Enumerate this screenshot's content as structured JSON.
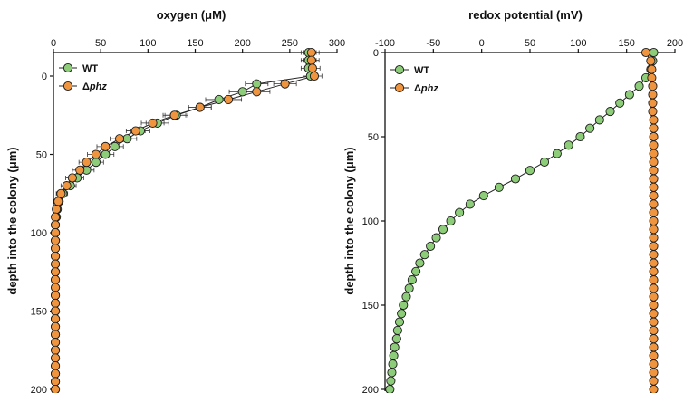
{
  "chart_data": [
    {
      "type": "scatter",
      "title": "oxygen (μM)",
      "xlabel": "",
      "ylabel": "depth into the colony (μm)",
      "xlim": [
        0,
        300
      ],
      "ylim": [
        -15,
        200
      ],
      "x_axis_position": "top",
      "y_inverted": true,
      "xticks": [
        0,
        50,
        100,
        150,
        200,
        250,
        300
      ],
      "yticks": [
        0,
        50,
        100,
        150,
        200
      ],
      "legend": {
        "position": "top-left",
        "entries": [
          {
            "label": "WT",
            "italic": false,
            "prefix": ""
          },
          {
            "label": "phz",
            "italic": true,
            "prefix": "Δ"
          }
        ]
      },
      "series": [
        {
          "name": "WT",
          "color": "#8dcc78",
          "points": [
            [
              270,
              -15
            ],
            [
              270,
              -10
            ],
            [
              270,
              -5
            ],
            [
              272,
              0
            ],
            [
              215,
              5
            ],
            [
              200,
              10
            ],
            [
              175,
              15
            ],
            [
              155,
              20
            ],
            [
              130,
              25
            ],
            [
              110,
              30
            ],
            [
              92,
              35
            ],
            [
              78,
              40
            ],
            [
              65,
              45
            ],
            [
              55,
              50
            ],
            [
              45,
              55
            ],
            [
              35,
              60
            ],
            [
              25,
              65
            ],
            [
              18,
              70
            ],
            [
              10,
              75
            ],
            [
              6,
              80
            ],
            [
              4,
              85
            ],
            [
              3,
              90
            ],
            [
              2,
              95
            ],
            [
              2,
              100
            ],
            [
              2,
              105
            ],
            [
              2,
              110
            ],
            [
              2,
              115
            ],
            [
              2,
              120
            ],
            [
              2,
              125
            ],
            [
              2,
              130
            ],
            [
              2,
              135
            ],
            [
              2,
              140
            ],
            [
              2,
              145
            ],
            [
              2,
              150
            ],
            [
              2,
              155
            ],
            [
              2,
              160
            ],
            [
              2,
              165
            ],
            [
              2,
              170
            ],
            [
              2,
              175
            ],
            [
              2,
              180
            ],
            [
              2,
              185
            ],
            [
              2,
              190
            ],
            [
              2,
              195
            ],
            [
              2,
              200
            ]
          ],
          "error": [
            8,
            8,
            8,
            8,
            12,
            14,
            14,
            12,
            12,
            12,
            10,
            10,
            9,
            9,
            8,
            8,
            7,
            6,
            5,
            4,
            2,
            2,
            2,
            2,
            2,
            2,
            2,
            2,
            2,
            2,
            2,
            2,
            2,
            2,
            2,
            2,
            2,
            2,
            2,
            2,
            2,
            2,
            2,
            2
          ]
        },
        {
          "name": "Δphz",
          "color": "#ef9540",
          "points": [
            [
              273,
              -15
            ],
            [
              273,
              -10
            ],
            [
              274,
              -5
            ],
            [
              276,
              0
            ],
            [
              245,
              5
            ],
            [
              215,
              10
            ],
            [
              185,
              15
            ],
            [
              155,
              20
            ],
            [
              128,
              25
            ],
            [
              105,
              30
            ],
            [
              87,
              35
            ],
            [
              70,
              40
            ],
            [
              55,
              45
            ],
            [
              45,
              50
            ],
            [
              35,
              55
            ],
            [
              28,
              60
            ],
            [
              20,
              65
            ],
            [
              14,
              70
            ],
            [
              8,
              75
            ],
            [
              5,
              80
            ],
            [
              3,
              85
            ],
            [
              2,
              90
            ],
            [
              2,
              95
            ],
            [
              2,
              100
            ],
            [
              2,
              105
            ],
            [
              2,
              110
            ],
            [
              2,
              115
            ],
            [
              2,
              120
            ],
            [
              2,
              125
            ],
            [
              2,
              130
            ],
            [
              2,
              135
            ],
            [
              2,
              140
            ],
            [
              2,
              145
            ],
            [
              2,
              150
            ],
            [
              2,
              155
            ],
            [
              2,
              160
            ],
            [
              2,
              165
            ],
            [
              2,
              170
            ],
            [
              2,
              175
            ],
            [
              2,
              180
            ],
            [
              2,
              185
            ],
            [
              2,
              190
            ],
            [
              2,
              195
            ],
            [
              2,
              200
            ]
          ],
          "error": [
            8,
            8,
            8,
            8,
            12,
            14,
            14,
            12,
            12,
            12,
            10,
            10,
            9,
            9,
            8,
            8,
            7,
            6,
            5,
            4,
            2,
            2,
            2,
            2,
            2,
            2,
            2,
            2,
            2,
            2,
            2,
            2,
            2,
            2,
            2,
            2,
            2,
            2,
            2,
            2,
            2,
            2,
            2,
            2
          ]
        }
      ]
    },
    {
      "type": "scatter",
      "title": "redox potential (mV)",
      "xlabel": "",
      "ylabel": "depth into the colony (μm)",
      "xlim": [
        -100,
        200
      ],
      "ylim": [
        0,
        200
      ],
      "x_axis_position": "top",
      "y_inverted": true,
      "xticks": [
        -100,
        -50,
        0,
        50,
        100,
        150,
        200
      ],
      "yticks": [
        0,
        50,
        100,
        150,
        200
      ],
      "legend": {
        "position": "top-left",
        "entries": [
          {
            "label": "WT",
            "italic": false,
            "prefix": ""
          },
          {
            "label": "phz",
            "italic": true,
            "prefix": "Δ"
          }
        ]
      },
      "series": [
        {
          "name": "WT",
          "color": "#8dcc78",
          "points": [
            [
              178,
              0
            ],
            [
              177,
              5
            ],
            [
              175,
              10
            ],
            [
              170,
              15
            ],
            [
              163,
              20
            ],
            [
              153,
              25
            ],
            [
              143,
              30
            ],
            [
              133,
              35
            ],
            [
              122,
              40
            ],
            [
              112,
              45
            ],
            [
              102,
              50
            ],
            [
              90,
              55
            ],
            [
              78,
              60
            ],
            [
              65,
              65
            ],
            [
              50,
              70
            ],
            [
              35,
              75
            ],
            [
              18,
              80
            ],
            [
              2,
              85
            ],
            [
              -12,
              90
            ],
            [
              -23,
              95
            ],
            [
              -32,
              100
            ],
            [
              -40,
              105
            ],
            [
              -47,
              110
            ],
            [
              -53,
              115
            ],
            [
              -59,
              120
            ],
            [
              -64,
              125
            ],
            [
              -68,
              130
            ],
            [
              -72,
              135
            ],
            [
              -75,
              140
            ],
            [
              -78,
              145
            ],
            [
              -81,
              150
            ],
            [
              -83,
              155
            ],
            [
              -85,
              160
            ],
            [
              -87,
              165
            ],
            [
              -88,
              170
            ],
            [
              -90,
              175
            ],
            [
              -91,
              180
            ],
            [
              -92,
              185
            ],
            [
              -93,
              190
            ],
            [
              -94,
              195
            ],
            [
              -95,
              200
            ]
          ]
        },
        {
          "name": "Δphz",
          "color": "#ef9540",
          "points": [
            [
              170,
              0
            ],
            [
              175,
              5
            ],
            [
              176,
              10
            ],
            [
              176,
              15
            ],
            [
              177,
              20
            ],
            [
              177,
              25
            ],
            [
              177,
              30
            ],
            [
              177,
              35
            ],
            [
              178,
              40
            ],
            [
              178,
              45
            ],
            [
              178,
              50
            ],
            [
              178,
              55
            ],
            [
              178,
              60
            ],
            [
              178,
              65
            ],
            [
              178,
              70
            ],
            [
              178,
              75
            ],
            [
              178,
              80
            ],
            [
              178,
              85
            ],
            [
              178,
              90
            ],
            [
              178,
              95
            ],
            [
              178,
              100
            ],
            [
              178,
              105
            ],
            [
              178,
              110
            ],
            [
              178,
              115
            ],
            [
              178,
              120
            ],
            [
              178,
              125
            ],
            [
              178,
              130
            ],
            [
              178,
              135
            ],
            [
              178,
              140
            ],
            [
              178,
              145
            ],
            [
              178,
              150
            ],
            [
              178,
              155
            ],
            [
              178,
              160
            ],
            [
              178,
              165
            ],
            [
              178,
              170
            ],
            [
              178,
              175
            ],
            [
              178,
              180
            ],
            [
              178,
              185
            ],
            [
              178,
              190
            ],
            [
              178,
              195
            ],
            [
              178,
              200
            ]
          ]
        }
      ]
    }
  ]
}
